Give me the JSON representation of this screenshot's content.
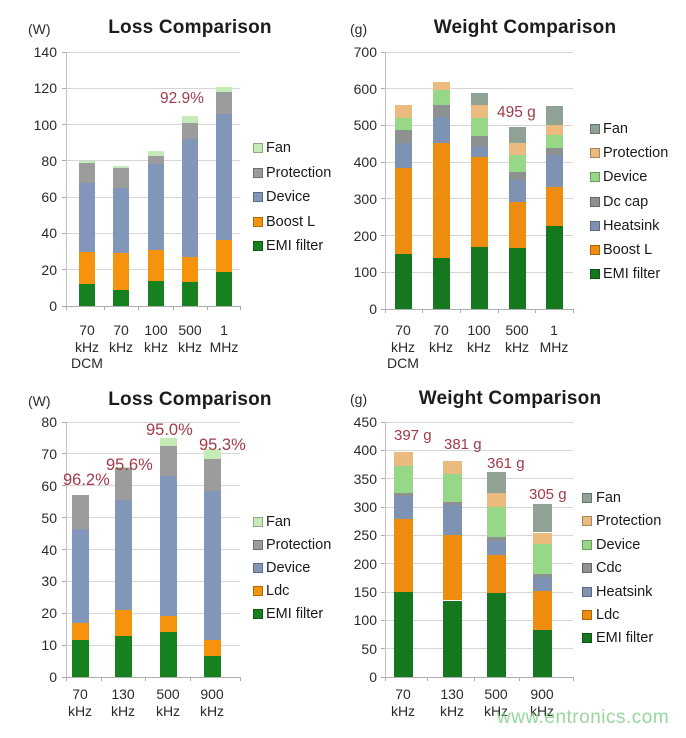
{
  "annotation_color": "#a13b4c",
  "watermark": {
    "text": "www.entronics.com",
    "color": "rgba(125,205,130,0.8)"
  },
  "chart_data": [
    {
      "type": "bar",
      "stacked": true,
      "title": "Loss Comparison",
      "unit_label": "(W)",
      "ylabel": "",
      "xlabel": "",
      "ylim": [
        0,
        140
      ],
      "ytick_step": 20,
      "grid": true,
      "legend_position": "right",
      "categories": [
        [
          "70",
          "kHz",
          "DCM"
        ],
        [
          "70",
          "kHz"
        ],
        [
          "100",
          "kHz"
        ],
        [
          "500",
          "kHz"
        ],
        [
          "1",
          "MHz"
        ]
      ],
      "series": [
        {
          "name": "EMI filter",
          "color": "#17801f",
          "values": [
            12,
            9,
            14,
            13,
            19
          ]
        },
        {
          "name": "Boost L",
          "color": "#f6930d",
          "values": [
            18,
            20,
            17,
            14,
            17.5
          ]
        },
        {
          "name": "Device",
          "color": "#8296ba",
          "values": [
            38,
            36,
            47,
            65,
            69.5
          ]
        },
        {
          "name": "Protection",
          "color": "#9c9c9c",
          "values": [
            11,
            11,
            4.5,
            9,
            12
          ]
        },
        {
          "name": "Fan",
          "color": "#c5ecb6",
          "values": [
            1,
            1,
            3,
            4,
            2.5
          ]
        }
      ],
      "legend": [
        "Fan",
        "Protection",
        "Device",
        "Boost L",
        "EMI filter"
      ],
      "annotations": [
        {
          "text": "92.9%",
          "bar": 3
        }
      ]
    },
    {
      "type": "bar",
      "stacked": true,
      "title": "Weight Comparison",
      "unit_label": "(g)",
      "ylabel": "",
      "xlabel": "",
      "ylim": [
        0,
        700
      ],
      "ytick_step": 100,
      "grid": true,
      "legend_position": "right",
      "categories": [
        [
          "70",
          "kHz",
          "DCM"
        ],
        [
          "70",
          "kHz"
        ],
        [
          "100",
          "kHz"
        ],
        [
          "500",
          "kHz"
        ],
        [
          "1",
          "MHz"
        ]
      ],
      "series": [
        {
          "name": "EMI filter",
          "color": "#15781e",
          "values": [
            150,
            140,
            170,
            165,
            225
          ]
        },
        {
          "name": "Boost L",
          "color": "#ee8c10",
          "values": [
            235,
            312,
            245,
            127,
            108
          ]
        },
        {
          "name": "Heatsink",
          "color": "#7e92b4",
          "values": [
            66,
            72,
            27,
            59,
            87
          ]
        },
        {
          "name": "Dc cap",
          "color": "#8d9190",
          "values": [
            37,
            32,
            28,
            23,
            18
          ]
        },
        {
          "name": "Device",
          "color": "#97d888",
          "values": [
            32,
            41,
            50,
            46,
            36
          ]
        },
        {
          "name": "Protection",
          "color": "#eaba7e",
          "values": [
            36,
            20,
            36,
            31,
            27
          ]
        },
        {
          "name": "Fan",
          "color": "#8fa295",
          "values": [
            0,
            0,
            32,
            44,
            52
          ]
        }
      ],
      "legend": [
        "Fan",
        "Protection",
        "Device",
        "Dc cap",
        "Heatsink",
        "Boost L",
        "EMI filter"
      ],
      "annotations": [
        {
          "text": "495 g",
          "bar": 3
        }
      ]
    },
    {
      "type": "bar",
      "stacked": true,
      "title": "Loss Comparison",
      "unit_label": "(W)",
      "ylabel": "",
      "xlabel": "",
      "ylim": [
        0,
        80
      ],
      "ytick_step": 10,
      "grid": true,
      "legend_position": "right",
      "categories": [
        [
          "70",
          "kHz"
        ],
        [
          "130",
          "kHz"
        ],
        [
          "500",
          "kHz"
        ],
        [
          "900",
          "kHz"
        ]
      ],
      "series": [
        {
          "name": "EMI filter",
          "color": "#17801f",
          "values": [
            11.5,
            13,
            14,
            6.5
          ]
        },
        {
          "name": "Ldc",
          "color": "#f6930d",
          "values": [
            5.5,
            8,
            5,
            5
          ]
        },
        {
          "name": "Device",
          "color": "#8296ba",
          "values": [
            29.5,
            34.5,
            44,
            47
          ]
        },
        {
          "name": "Protection",
          "color": "#9c9c9c",
          "values": [
            10.5,
            10,
            9.5,
            10
          ]
        },
        {
          "name": "Fan",
          "color": "#c5ecb6",
          "values": [
            0,
            0.5,
            2.5,
            3
          ]
        }
      ],
      "legend": [
        "Fan",
        "Protection",
        "Device",
        "Ldc",
        "EMI filter"
      ],
      "annotations": [
        {
          "text": "96.2%",
          "bar": 0
        },
        {
          "text": "95.6%",
          "bar": 1
        },
        {
          "text": "95.0%",
          "bar": 2
        },
        {
          "text": "95.3%",
          "bar": 3
        }
      ]
    },
    {
      "type": "bar",
      "stacked": true,
      "title": "Weight Comparison",
      "unit_label": "(g)",
      "ylabel": "",
      "xlabel": "",
      "ylim": [
        0,
        450
      ],
      "ytick_step": 50,
      "grid": true,
      "legend_position": "right",
      "categories": [
        [
          "70",
          "kHz"
        ],
        [
          "130",
          "kHz"
        ],
        [
          "500",
          "kHz"
        ],
        [
          "900",
          "kHz"
        ]
      ],
      "series": [
        {
          "name": "EMI filter",
          "color": "#15781e",
          "values": [
            150,
            135,
            148,
            83
          ]
        },
        {
          "name": "Ldc",
          "color": "#ee8c10",
          "values": [
            128,
            116,
            67,
            69
          ]
        },
        {
          "name": "Heatsink",
          "color": "#7e92b4",
          "values": [
            42,
            53,
            25,
            25
          ]
        },
        {
          "name": "Cdc",
          "color": "#8d9190",
          "values": [
            5,
            5,
            7,
            5
          ]
        },
        {
          "name": "Device",
          "color": "#97d888",
          "values": [
            48,
            50,
            53,
            53
          ]
        },
        {
          "name": "Protection",
          "color": "#eaba7e",
          "values": [
            24,
            22,
            24,
            20
          ]
        },
        {
          "name": "Fan",
          "color": "#8fa295",
          "values": [
            0,
            0,
            37,
            50
          ]
        }
      ],
      "legend": [
        "Fan",
        "Protection",
        "Device",
        "Cdc",
        "Heatsink",
        "Ldc",
        "EMI filter"
      ],
      "annotations": [
        {
          "text": "397 g",
          "bar": 0
        },
        {
          "text": "381 g",
          "bar": 1
        },
        {
          "text": "361 g",
          "bar": 2
        },
        {
          "text": "305 g",
          "bar": 3
        }
      ]
    }
  ]
}
